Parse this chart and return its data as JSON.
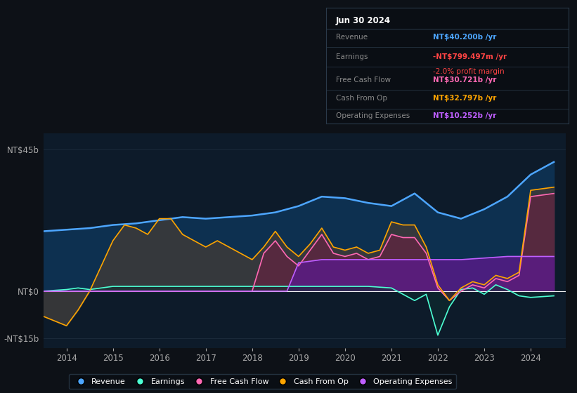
{
  "bg_color": "#0d1117",
  "plot_bg_color": "#0d1b2a",
  "title_box": {
    "date": "Jun 30 2024",
    "rows": [
      {
        "label": "Revenue",
        "value": "NT$40.200b",
        "value_color": "#4da6ff",
        "suffix": " /yr",
        "extra": null,
        "extra_color": null
      },
      {
        "label": "Earnings",
        "value": "-NT$799.497m",
        "value_color": "#ff4444",
        "suffix": " /yr",
        "extra": "-2.0% profit margin",
        "extra_color": "#ff4444"
      },
      {
        "label": "Free Cash Flow",
        "value": "NT$30.721b",
        "value_color": "#ff69b4",
        "suffix": " /yr",
        "extra": null,
        "extra_color": null
      },
      {
        "label": "Cash From Op",
        "value": "NT$32.797b",
        "value_color": "#ffa500",
        "suffix": " /yr",
        "extra": null,
        "extra_color": null
      },
      {
        "label": "Operating Expenses",
        "value": "NT$10.252b",
        "value_color": "#bf5fff",
        "suffix": " /yr",
        "extra": null,
        "extra_color": null
      }
    ]
  },
  "y_labels": [
    "NT$45b",
    "NT$0",
    "-NT$15b"
  ],
  "y_ticks": [
    45,
    0,
    -15
  ],
  "x_ticks": [
    2014,
    2015,
    2016,
    2017,
    2018,
    2019,
    2020,
    2021,
    2022,
    2023,
    2024
  ],
  "x_range": [
    2013.5,
    2024.75
  ],
  "y_range": [
    -18,
    50
  ],
  "legend": [
    {
      "label": "Revenue",
      "color": "#4da6ff"
    },
    {
      "label": "Earnings",
      "color": "#4dffd4"
    },
    {
      "label": "Free Cash Flow",
      "color": "#ff69b4"
    },
    {
      "label": "Cash From Op",
      "color": "#ffa500"
    },
    {
      "label": "Operating Expenses",
      "color": "#bf5fff"
    }
  ],
  "revenue_x": [
    2013.5,
    2014.0,
    2014.5,
    2015.0,
    2015.5,
    2016.0,
    2016.5,
    2017.0,
    2017.5,
    2018.0,
    2018.5,
    2019.0,
    2019.5,
    2020.0,
    2020.5,
    2021.0,
    2021.5,
    2022.0,
    2022.5,
    2023.0,
    2023.5,
    2024.0,
    2024.5
  ],
  "revenue_y": [
    19,
    19.5,
    20,
    21,
    21.5,
    22.5,
    23.5,
    23,
    23.5,
    24,
    25,
    27,
    30,
    29.5,
    28,
    27,
    31,
    25,
    23,
    26,
    30,
    37,
    41
  ],
  "earnings_x": [
    2013.5,
    2014.0,
    2014.25,
    2014.5,
    2014.75,
    2015.0,
    2015.5,
    2016.0,
    2016.5,
    2017.0,
    2017.5,
    2018.0,
    2018.5,
    2019.0,
    2019.5,
    2020.0,
    2020.5,
    2021.0,
    2021.25,
    2021.5,
    2021.75,
    2022.0,
    2022.25,
    2022.5,
    2022.75,
    2023.0,
    2023.25,
    2023.5,
    2023.75,
    2024.0,
    2024.5
  ],
  "earnings_y": [
    0,
    0.5,
    1,
    0.5,
    1,
    1.5,
    1.5,
    1.5,
    1.5,
    1.5,
    1.5,
    1.5,
    1.5,
    1.5,
    1.5,
    1.5,
    1.5,
    1,
    -1,
    -3,
    -1,
    -14,
    -5,
    0.5,
    1,
    -1,
    2,
    0.5,
    -1.5,
    -2,
    -1.5
  ],
  "cash_from_op_x": [
    2013.5,
    2014.0,
    2014.25,
    2014.5,
    2014.75,
    2015.0,
    2015.25,
    2015.5,
    2015.75,
    2016.0,
    2016.25,
    2016.5,
    2016.75,
    2017.0,
    2017.25,
    2017.5,
    2017.75,
    2018.0,
    2018.25,
    2018.5,
    2018.75,
    2019.0,
    2019.25,
    2019.5,
    2019.75,
    2020.0,
    2020.25,
    2020.5,
    2020.75,
    2021.0,
    2021.25,
    2021.5,
    2021.75,
    2022.0,
    2022.25,
    2022.5,
    2022.75,
    2023.0,
    2023.25,
    2023.5,
    2023.75,
    2024.0,
    2024.5
  ],
  "cash_from_op_y": [
    -8,
    -11,
    -6,
    0,
    8,
    16,
    21,
    20,
    18,
    23,
    23,
    18,
    16,
    14,
    16,
    14,
    12,
    10,
    14,
    19,
    14,
    11,
    15,
    20,
    14,
    13,
    14,
    12,
    13,
    22,
    21,
    21,
    14,
    2,
    -3,
    1,
    3,
    2,
    5,
    4,
    6,
    32,
    33
  ],
  "free_cash_flow_x": [
    2013.5,
    2014.0,
    2014.25,
    2014.5,
    2014.75,
    2015.0,
    2015.25,
    2015.5,
    2015.75,
    2016.0,
    2016.25,
    2016.5,
    2016.75,
    2017.0,
    2017.25,
    2017.5,
    2017.75,
    2018.0,
    2018.25,
    2018.5,
    2018.75,
    2019.0,
    2019.25,
    2019.5,
    2019.75,
    2020.0,
    2020.25,
    2020.5,
    2020.75,
    2021.0,
    2021.25,
    2021.5,
    2021.75,
    2022.0,
    2022.25,
    2022.5,
    2022.75,
    2023.0,
    2023.25,
    2023.5,
    2023.75,
    2024.0,
    2024.5
  ],
  "free_cash_flow_y": [
    0,
    0,
    0,
    0,
    0,
    0,
    0,
    0,
    0,
    0,
    0,
    0,
    0,
    0,
    0,
    0,
    0,
    0,
    12,
    16,
    11,
    8,
    13,
    18,
    12,
    11,
    12,
    10,
    11,
    18,
    17,
    17,
    12,
    1,
    -3,
    0,
    2,
    1,
    4,
    3,
    5,
    30,
    31
  ],
  "operating_expenses_x": [
    2013.5,
    2014.0,
    2015.0,
    2016.0,
    2017.0,
    2018.0,
    2018.75,
    2019.0,
    2019.25,
    2019.5,
    2019.75,
    2020.0,
    2020.5,
    2021.0,
    2021.5,
    2022.0,
    2022.5,
    2023.0,
    2023.5,
    2024.0,
    2024.5
  ],
  "operating_expenses_y": [
    0,
    0,
    0,
    0,
    0,
    0,
    0,
    9,
    9.5,
    10,
    10,
    10,
    10,
    10,
    10,
    10,
    10,
    10.5,
    11,
    11,
    11
  ]
}
